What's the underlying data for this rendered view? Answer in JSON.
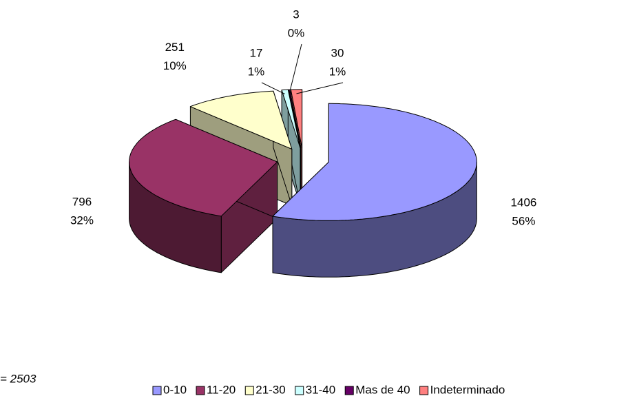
{
  "chart_data": {
    "type": "pie3d",
    "categories": [
      "0-10",
      "11-20",
      "21-30",
      "31-40",
      "Mas de 40",
      "Indeterminado"
    ],
    "values": [
      1406,
      796,
      251,
      17,
      3,
      30
    ],
    "percent_labels": [
      "56%",
      "32%",
      "10%",
      "1%",
      "0%",
      "1%"
    ],
    "colors": [
      "#9999ff",
      "#993366",
      "#ffffcc",
      "#ccffff",
      "#660066",
      "#ff8080"
    ],
    "note": "= 2503",
    "legend": "bottom"
  }
}
